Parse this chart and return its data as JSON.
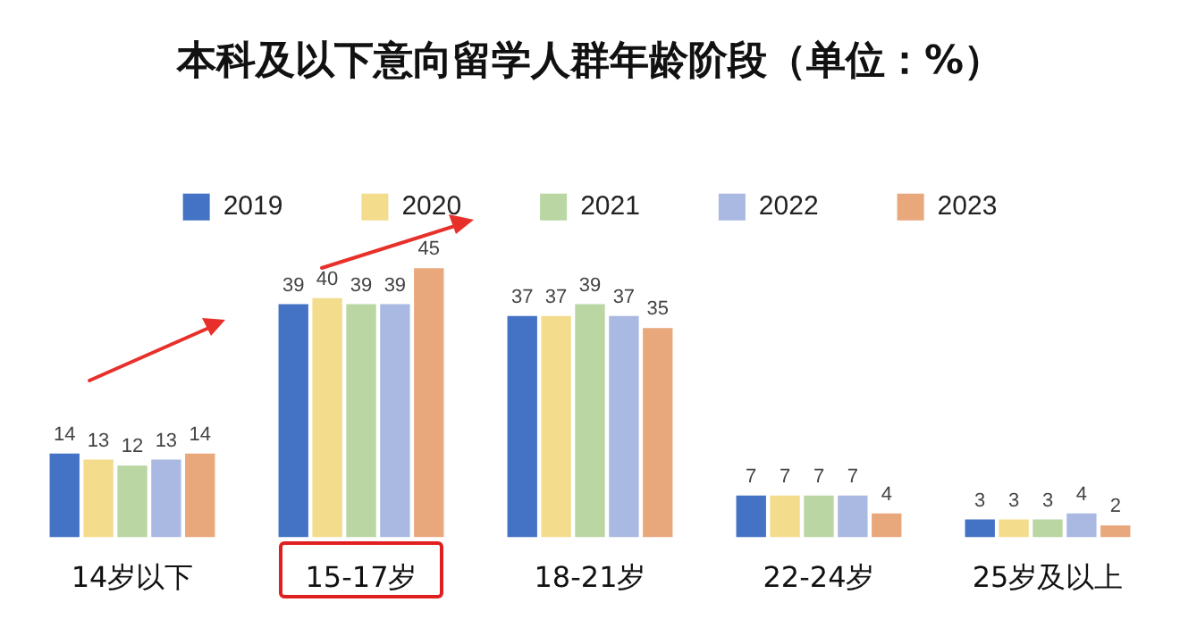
{
  "chart_data": {
    "type": "bar",
    "title": "本科及以下意向留学人群年龄阶段（单位：%）",
    "categories": [
      "14岁以下",
      "15-17岁",
      "18-21岁",
      "22-24岁",
      "25岁及以上"
    ],
    "series": [
      {
        "name": "2019",
        "color": "#4472c4",
        "values": [
          14,
          39,
          37,
          7,
          3
        ]
      },
      {
        "name": "2020",
        "color": "#f3dc8c",
        "values": [
          13,
          40,
          37,
          7,
          3
        ]
      },
      {
        "name": "2021",
        "color": "#b9d6a3",
        "values": [
          12,
          39,
          39,
          7,
          3
        ]
      },
      {
        "name": "2022",
        "color": "#aab9e2",
        "values": [
          13,
          39,
          37,
          7,
          4
        ]
      },
      {
        "name": "2023",
        "color": "#e9a77c",
        "values": [
          14,
          45,
          35,
          4,
          2
        ]
      }
    ],
    "data_labels": true,
    "legend": "top",
    "grid": false
  }
}
